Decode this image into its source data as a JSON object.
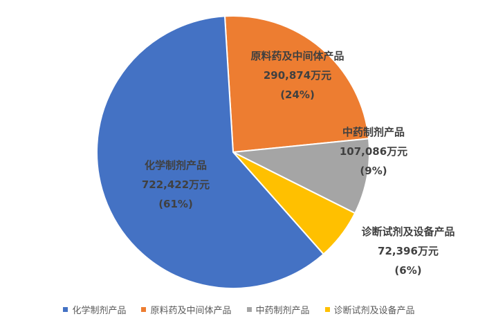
{
  "chart_data": {
    "type": "pie",
    "unit": "万元",
    "slices": [
      {
        "name": "化学制剂产品",
        "value": 722422,
        "value_label": "722,422万元",
        "percent_label": "(61%)",
        "color": "#4472C4"
      },
      {
        "name": "原料药及中间体产品",
        "value": 290874,
        "value_label": "290,874万元",
        "percent_label": "(24%)",
        "color": "#ED7D31"
      },
      {
        "name": "中药制剂产品",
        "value": 107086,
        "value_label": "107,086万元",
        "percent_label": "(9%)",
        "color": "#A5A5A5"
      },
      {
        "name": "诊断试剂及设备产品",
        "value": 72396,
        "value_label": "72,396万元",
        "percent_label": "(6%)",
        "color": "#FFC000"
      }
    ],
    "legend_position": "bottom"
  }
}
